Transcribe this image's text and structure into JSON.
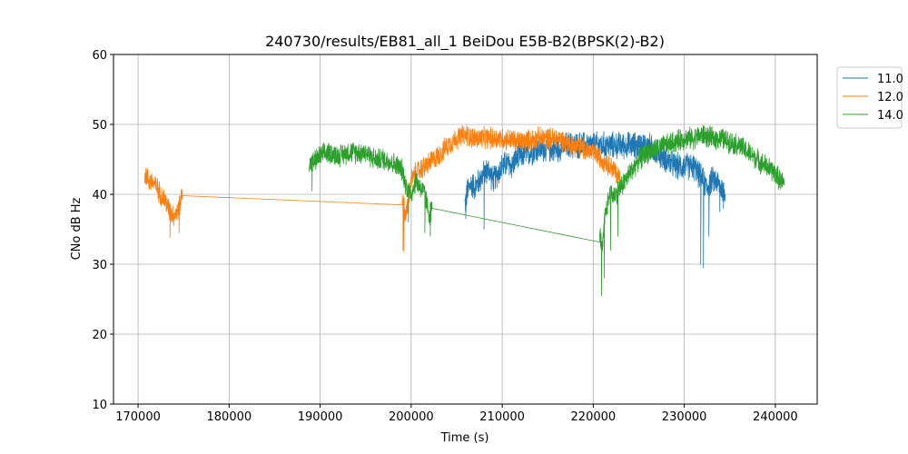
{
  "chart_data": {
    "type": "line",
    "title": "240730/results/EB81_all_1 BeiDou E5B-B2(BPSK(2)-B2)",
    "xlabel": "Time (s)",
    "ylabel": "CNo dB Hz",
    "xlim": [
      167300,
      244600
    ],
    "ylim": [
      10,
      60
    ],
    "xticks": [
      170000,
      180000,
      190000,
      200000,
      210000,
      220000,
      230000,
      240000
    ],
    "xtick_labels": [
      "170000",
      "180000",
      "190000",
      "200000",
      "210000",
      "220000",
      "230000",
      "240000"
    ],
    "yticks": [
      10,
      20,
      30,
      40,
      50,
      60
    ],
    "ytick_labels": [
      "10",
      "20",
      "30",
      "40",
      "50",
      "60"
    ],
    "grid": true,
    "legend_position": "outside-top-right",
    "series": [
      {
        "name": "11.0",
        "color": "#1f77b4",
        "noise": 2.2,
        "x": [
          205900,
          206200,
          206600,
          207000,
          207500,
          208000,
          208500,
          209000,
          209500,
          210000,
          210500,
          211000,
          211500,
          212000,
          213000,
          214000,
          215000,
          216000,
          217000,
          218000,
          219000,
          220000,
          221000,
          222000,
          223000,
          224000,
          225000,
          226000,
          227000,
          228000,
          229000,
          230000,
          231000,
          231500,
          232000,
          232500,
          233000,
          233500,
          234000,
          234500
        ],
        "y": [
          38.5,
          40.5,
          41.5,
          41,
          42,
          43,
          43.5,
          42,
          43,
          44,
          44.5,
          44,
          45,
          45.5,
          46,
          46.5,
          46.5,
          46.5,
          47,
          47,
          47,
          47,
          47,
          47,
          47,
          47,
          47,
          47,
          46,
          45,
          44,
          44,
          44,
          43,
          42,
          41,
          42,
          42,
          41,
          40
        ],
        "dips": [
          [
            206000,
            36.5
          ],
          [
            208000,
            35
          ],
          [
            231800,
            30
          ],
          [
            232100,
            29.5
          ],
          [
            232700,
            34
          ],
          [
            233900,
            37.5
          ],
          [
            234300,
            38
          ]
        ]
      },
      {
        "name": "12.0",
        "color": "#ff7f0e",
        "noise": 1.8,
        "x": [
          170700,
          171200,
          171800,
          172500,
          173000,
          173500,
          174000,
          174500,
          174800,
          174850,
          199000,
          199300,
          199600,
          200000,
          200500,
          201000,
          202000,
          203000,
          204000,
          205000,
          206000,
          207000,
          208000,
          210000,
          212000,
          214000,
          215000,
          216000,
          217000,
          218000,
          219000,
          220000,
          221000,
          222000,
          222500,
          223000
        ],
        "y": [
          43,
          42,
          41.5,
          40,
          39,
          37.5,
          37,
          38,
          40,
          39.8,
          39.8,
          37,
          38,
          42,
          43,
          43.5,
          44.5,
          45.5,
          47,
          48,
          48.5,
          48,
          48,
          48,
          47.5,
          48,
          48,
          48,
          47.5,
          47,
          46.5,
          46,
          45,
          44,
          43,
          42
        ],
        "dips": [
          [
            173500,
            33.8
          ],
          [
            174500,
            34.5
          ],
          [
            199100,
            32
          ],
          [
            199200,
            31.8
          ]
        ]
      },
      {
        "name": "14.0",
        "color": "#2ca02c",
        "noise": 1.8,
        "x": [
          188800,
          189200,
          190000,
          191000,
          192000,
          193000,
          194000,
          195000,
          196000,
          197000,
          198000,
          199000,
          199500,
          200000,
          200500,
          201000,
          201500,
          202000,
          202300,
          220700,
          221000,
          221300,
          221800,
          222500,
          223000,
          224000,
          225000,
          226000,
          227000,
          228000,
          229000,
          230000,
          231000,
          232000,
          233000,
          234000,
          235000,
          236000,
          237000,
          238000,
          239000,
          240000,
          240500,
          241000
        ],
        "y": [
          44.5,
          44.5,
          45.5,
          46,
          45.5,
          46,
          46,
          46,
          45,
          45,
          44.5,
          43.5,
          41,
          40,
          42,
          41,
          40,
          37,
          38,
          34.5,
          32,
          37,
          40,
          40,
          41,
          43,
          45,
          46,
          46.5,
          47,
          47.5,
          48,
          48,
          48.5,
          48,
          48,
          47.5,
          47,
          46,
          45,
          44,
          43,
          42,
          41.5
        ],
        "dips": [
          [
            189100,
            40.5
          ],
          [
            199700,
            36
          ],
          [
            201500,
            34.5
          ],
          [
            202100,
            34
          ],
          [
            220900,
            25.5
          ],
          [
            221200,
            28
          ],
          [
            221900,
            32
          ],
          [
            222700,
            34
          ]
        ]
      }
    ]
  }
}
